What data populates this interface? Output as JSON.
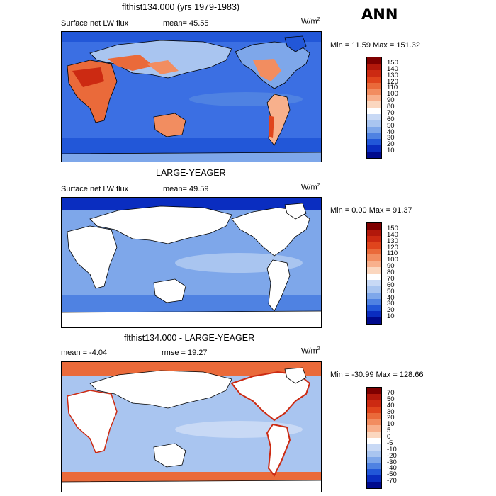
{
  "season": "ANN",
  "panels": [
    {
      "title": "flthist134.000 (yrs 1979-1983)",
      "left_label": "Surface net LW flux",
      "stat_label": "mean=  45.55",
      "stat2_label": "",
      "units_base": "W/m",
      "units_exp": "2",
      "minmax": "Min =  11.59 Max = 151.32",
      "cbar_levels": [
        "150",
        "140",
        "130",
        "120",
        "110",
        "100",
        "90",
        "80",
        "70",
        "60",
        "50",
        "40",
        "30",
        "20",
        "10"
      ],
      "cbar_colors": [
        "#7f0000",
        "#b2180b",
        "#cc2a12",
        "#e0451d",
        "#ea6a3a",
        "#f28d60",
        "#f8b08c",
        "#fbd7bf",
        "#ffffff",
        "#c8d9f5",
        "#a9c5f0",
        "#7ea7ea",
        "#4f82e2",
        "#2257d8",
        "#0a2dc0",
        "#000a8c"
      ],
      "ocean_color": "#3b6fe3"
    },
    {
      "title": "LARGE-YEAGER",
      "left_label": "Surface net LW flux",
      "stat_label": "mean=  49.59",
      "stat2_label": "",
      "units_base": "W/m",
      "units_exp": "2",
      "minmax": "Min =   0.00 Max =  91.37",
      "cbar_levels": [
        "150",
        "140",
        "130",
        "120",
        "110",
        "100",
        "90",
        "80",
        "70",
        "60",
        "50",
        "40",
        "30",
        "20",
        "10"
      ],
      "cbar_colors": [
        "#7f0000",
        "#b2180b",
        "#cc2a12",
        "#e0451d",
        "#ea6a3a",
        "#f28d60",
        "#f8b08c",
        "#fbd7bf",
        "#ffffff",
        "#c8d9f5",
        "#a9c5f0",
        "#7ea7ea",
        "#4f82e2",
        "#2257d8",
        "#0a2dc0",
        "#000a8c"
      ],
      "ocean_color": "#7ea7ea"
    },
    {
      "title": "flthist134.000 - LARGE-YEAGER",
      "left_label": "mean =  -4.04",
      "stat_label": "",
      "stat2_label": "rmse =  19.27",
      "units_base": "W/m",
      "units_exp": "2",
      "minmax": "Min = -30.99 Max = 128.66",
      "cbar_levels": [
        "70",
        "50",
        "40",
        "30",
        "20",
        "10",
        "5",
        "0",
        "-5",
        "-10",
        "-20",
        "-30",
        "-40",
        "-50",
        "-70"
      ],
      "cbar_colors": [
        "#7f0000",
        "#b2180b",
        "#cc2a12",
        "#e0451d",
        "#ea6a3a",
        "#f28d60",
        "#f8b08c",
        "#fbd7bf",
        "#ffffff",
        "#c8d9f5",
        "#a9c5f0",
        "#7ea7ea",
        "#4f82e2",
        "#2257d8",
        "#0a2dc0",
        "#000a8c"
      ],
      "ocean_color": "#a9c5f0"
    }
  ]
}
